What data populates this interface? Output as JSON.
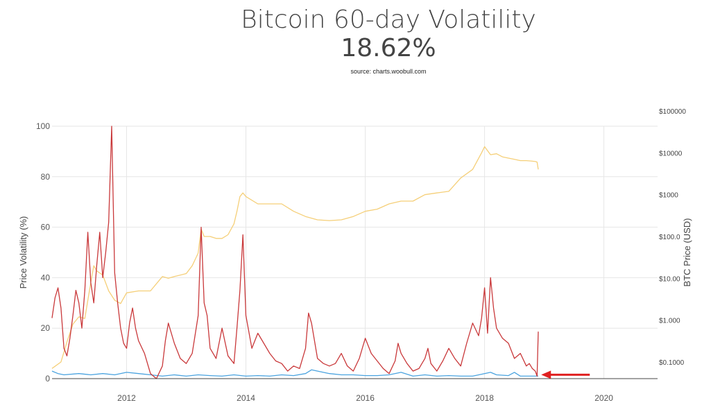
{
  "header": {
    "title": "Bitcoin 60-day Volatility",
    "subtitle": "18.62%",
    "source": "source: charts.woobull.com"
  },
  "chart_data": {
    "type": "line",
    "ylabel": "Price Volatility (%)",
    "y2label": "BTC Price (USD)",
    "xlim": [
      2010.75,
      2020.9
    ],
    "ylim": [
      0,
      100
    ],
    "y2_scale": "log",
    "y2lim": [
      0.04,
      100000
    ],
    "x_ticks": [
      "2012",
      "2014",
      "2016",
      "2018",
      "2020"
    ],
    "y_ticks": [
      "0",
      "20",
      "40",
      "60",
      "80",
      "100"
    ],
    "y2_ticks": [
      "$0.1000",
      "$1.000",
      "$10.00",
      "$100.0",
      "$1000",
      "$10000",
      "$100000"
    ],
    "grid": true,
    "annotation": "red arrow pointing to latest volatility value",
    "colors": {
      "volatility": "#c9383a",
      "price": "#f5cf78",
      "other": "#4aa3df",
      "arrow": "#e02020"
    },
    "series": [
      {
        "axis": "left",
        "x": [
          2010.75,
          2010.8,
          2010.85,
          2010.9,
          2010.95,
          2011.0,
          2011.05,
          2011.1,
          2011.15,
          2011.2,
          2011.25,
          2011.3,
          2011.35,
          2011.4,
          2011.45,
          2011.5,
          2011.55,
          2011.6,
          2011.65,
          2011.7,
          2011.75,
          2011.8,
          2011.85,
          2011.9,
          2011.95,
          2012.0,
          2012.05,
          2012.1,
          2012.15,
          2012.2,
          2012.3,
          2012.4,
          2012.5,
          2012.6,
          2012.65,
          2012.7,
          2012.8,
          2012.9,
          2013.0,
          2013.1,
          2013.2,
          2013.25,
          2013.3,
          2013.35,
          2013.4,
          2013.5,
          2013.6,
          2013.7,
          2013.8,
          2013.85,
          2013.9,
          2013.95,
          2014.0,
          2014.1,
          2014.2,
          2014.3,
          2014.4,
          2014.5,
          2014.6,
          2014.7,
          2014.8,
          2014.9,
          2015.0,
          2015.05,
          2015.1,
          2015.15,
          2015.2,
          2015.3,
          2015.4,
          2015.5,
          2015.6,
          2015.7,
          2015.8,
          2015.9,
          2015.95,
          2016.0,
          2016.1,
          2016.2,
          2016.3,
          2016.4,
          2016.5,
          2016.55,
          2016.6,
          2016.7,
          2016.8,
          2016.9,
          2017.0,
          2017.05,
          2017.1,
          2017.2,
          2017.3,
          2017.4,
          2017.5,
          2017.6,
          2017.7,
          2017.8,
          2017.9,
          2017.95,
          2018.0,
          2018.05,
          2018.1,
          2018.15,
          2018.2,
          2018.3,
          2018.4,
          2018.5,
          2018.6,
          2018.7,
          2018.75,
          2018.8,
          2018.85,
          2018.88,
          2018.9
        ],
        "values": [
          24,
          32,
          36,
          28,
          12,
          9,
          16,
          25,
          35,
          30,
          20,
          35,
          58,
          38,
          30,
          45,
          58,
          40,
          50,
          62,
          100,
          42,
          30,
          20,
          14,
          12,
          22,
          28,
          20,
          15,
          10,
          2,
          0,
          5,
          15,
          22,
          14,
          8,
          6,
          10,
          25,
          60,
          30,
          25,
          12,
          8,
          20,
          9,
          6,
          20,
          35,
          57,
          25,
          12,
          18,
          14,
          10,
          7,
          6,
          3,
          5,
          4,
          12,
          26,
          22,
          15,
          8,
          6,
          5,
          6,
          10,
          5,
          3,
          8,
          12,
          16,
          10,
          7,
          4,
          2,
          7,
          14,
          10,
          6,
          3,
          4,
          8,
          12,
          6,
          3,
          7,
          12,
          8,
          5,
          14,
          22,
          17,
          24,
          36,
          18,
          40,
          28,
          20,
          16,
          14,
          8,
          10,
          5,
          6,
          4,
          3,
          1,
          18.62
        ]
      },
      {
        "axis": "right",
        "x": [
          2010.75,
          2010.9,
          2011.0,
          2011.1,
          2011.2,
          2011.3,
          2011.4,
          2011.45,
          2011.5,
          2011.6,
          2011.7,
          2011.8,
          2011.9,
          2012.0,
          2012.2,
          2012.4,
          2012.6,
          2012.7,
          2012.8,
          2013.0,
          2013.1,
          2013.2,
          2013.25,
          2013.3,
          2013.4,
          2013.5,
          2013.6,
          2013.7,
          2013.8,
          2013.85,
          2013.9,
          2013.95,
          2014.0,
          2014.2,
          2014.4,
          2014.6,
          2014.8,
          2015.0,
          2015.2,
          2015.4,
          2015.6,
          2015.8,
          2016.0,
          2016.2,
          2016.4,
          2016.6,
          2016.8,
          2017.0,
          2017.2,
          2017.4,
          2017.6,
          2017.8,
          2017.95,
          2018.0,
          2018.1,
          2018.2,
          2018.3,
          2018.5,
          2018.6,
          2018.7,
          2018.8,
          2018.85,
          2018.88,
          2018.9
        ],
        "values": [
          0.07,
          0.1,
          0.3,
          0.8,
          1.2,
          1.1,
          8,
          20,
          15,
          12,
          5,
          3,
          2.5,
          4.5,
          5,
          5,
          11,
          10,
          11,
          13,
          20,
          40,
          150,
          100,
          100,
          90,
          90,
          110,
          200,
          400,
          900,
          1100,
          900,
          600,
          600,
          600,
          400,
          300,
          250,
          240,
          250,
          300,
          400,
          450,
          600,
          700,
          700,
          1000,
          1100,
          1200,
          2500,
          4000,
          10000,
          14000,
          9000,
          9500,
          8000,
          7000,
          6500,
          6500,
          6300,
          6200,
          6000,
          4000
        ]
      },
      {
        "axis": "left",
        "x": [
          2010.75,
          2010.85,
          2010.95,
          2011.2,
          2011.4,
          2011.6,
          2011.8,
          2012.0,
          2012.2,
          2012.4,
          2012.6,
          2012.8,
          2013.0,
          2013.2,
          2013.4,
          2013.6,
          2013.8,
          2014.0,
          2014.2,
          2014.4,
          2014.6,
          2014.8,
          2015.0,
          2015.1,
          2015.2,
          2015.4,
          2015.6,
          2015.8,
          2016.0,
          2016.2,
          2016.4,
          2016.6,
          2016.8,
          2017.0,
          2017.2,
          2017.4,
          2017.6,
          2017.8,
          2018.0,
          2018.1,
          2018.2,
          2018.4,
          2018.5,
          2018.6,
          2018.8,
          2018.9
        ],
        "values": [
          3,
          2,
          1.5,
          2,
          1.5,
          2,
          1.5,
          2.5,
          2,
          1.5,
          1,
          1.5,
          1,
          1.5,
          1.2,
          1,
          1.5,
          1,
          1.2,
          1,
          1.5,
          1.2,
          2,
          3.5,
          3,
          2,
          1.5,
          1.5,
          1.2,
          1.2,
          1.5,
          2.5,
          1,
          1.5,
          1,
          1.2,
          1,
          1,
          2,
          2.5,
          1.5,
          1.2,
          2.5,
          1,
          1,
          1
        ]
      }
    ]
  }
}
